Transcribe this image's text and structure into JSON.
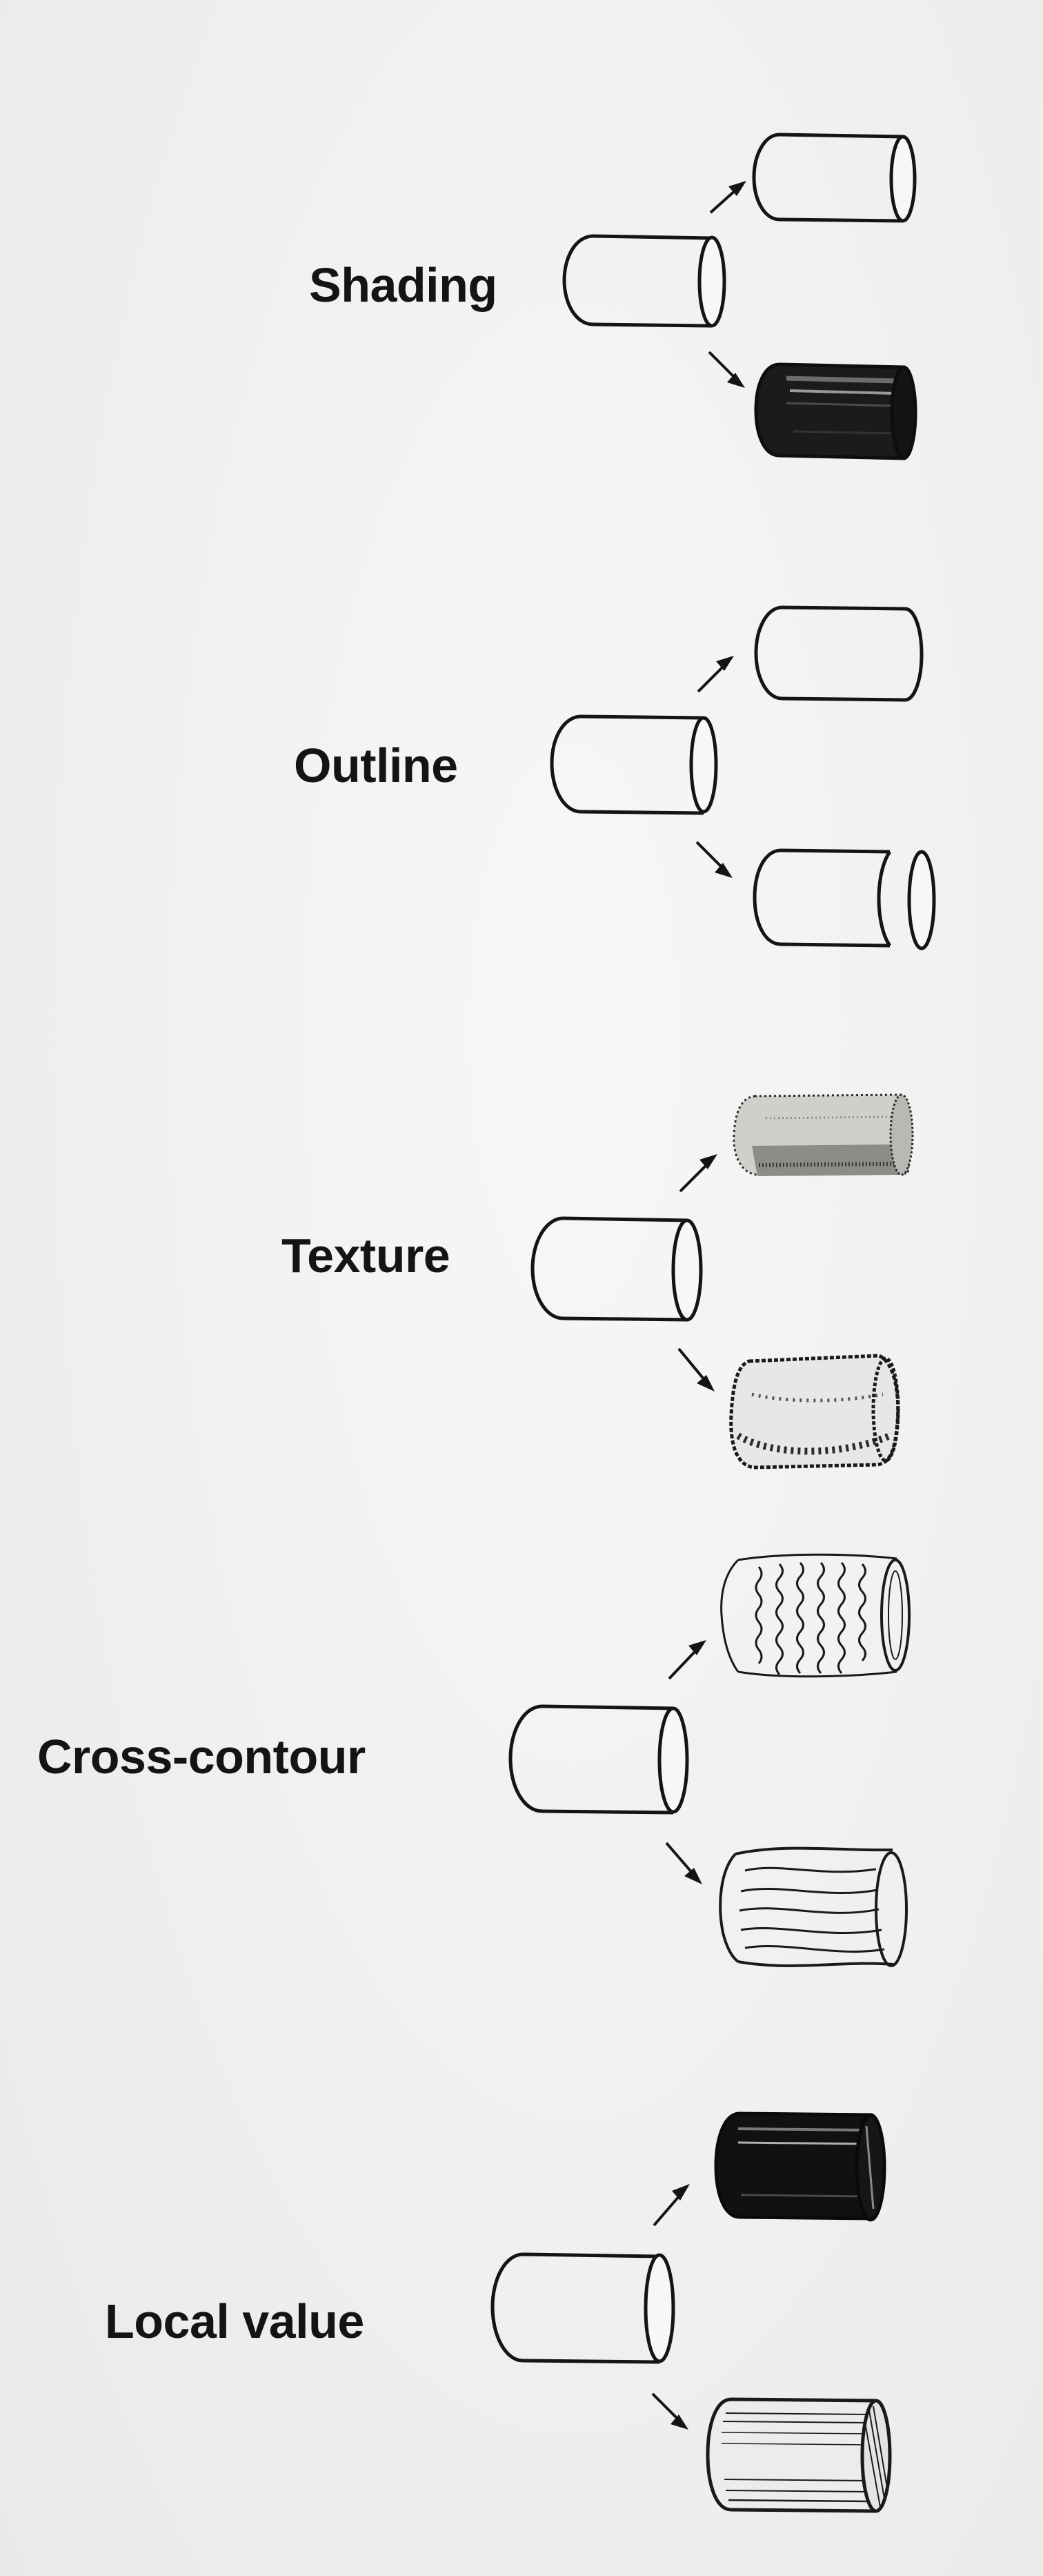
{
  "diagram": {
    "sections": [
      {
        "id": "shading",
        "label": "Shading",
        "top_variant": "plain-cylinder-icon",
        "bottom_variant": "shaded-cylinder-icon"
      },
      {
        "id": "outline",
        "label": "Outline",
        "top_variant": "plain-cylinder-icon",
        "bottom_variant": "separated-outline-cylinder-icon"
      },
      {
        "id": "texture",
        "label": "Texture",
        "top_variant": "fur-textured-cylinder-icon",
        "bottom_variant": "bumpy-textured-cylinder-icon"
      },
      {
        "id": "cross-contour",
        "label": "Cross-contour",
        "top_variant": "wavy-contour-cylinder-icon",
        "bottom_variant": "organic-contour-cylinder-icon"
      },
      {
        "id": "local-value",
        "label": "Local value",
        "top_variant": "dark-value-cylinder-icon",
        "bottom_variant": "light-value-cylinder-icon"
      }
    ],
    "colors": {
      "ink": "#141414",
      "paper": "#f1f1f0",
      "dark_fill": "#111111"
    }
  }
}
